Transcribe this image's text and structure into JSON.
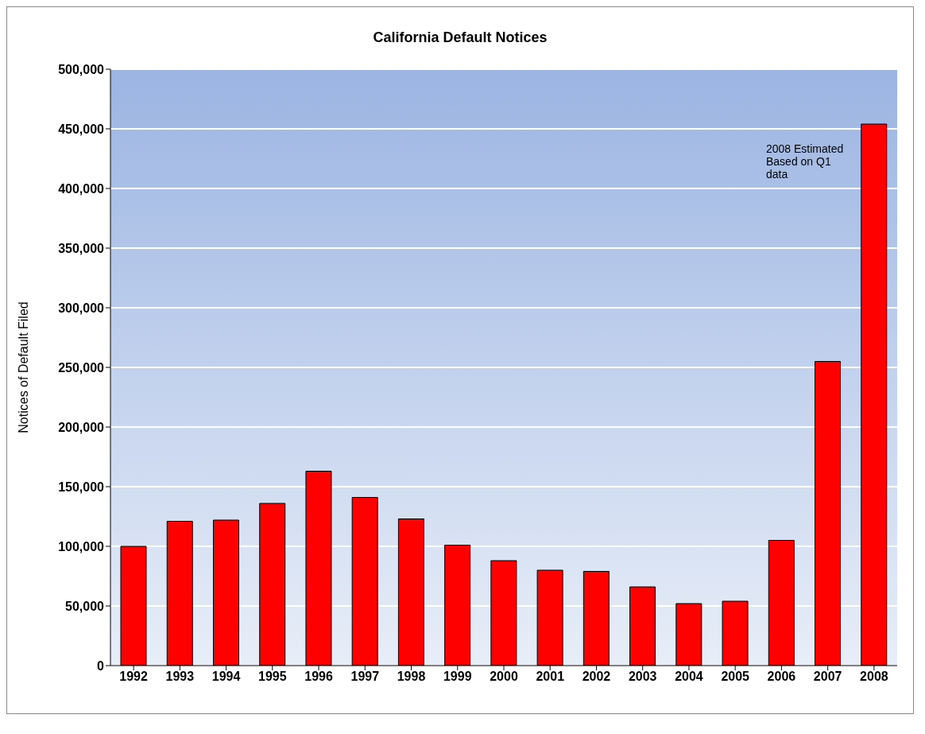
{
  "chart_data": {
    "type": "bar",
    "title": "California Default Notices",
    "ylabel": "Notices of Default Filed",
    "categories": [
      "1992",
      "1993",
      "1994",
      "1995",
      "1996",
      "1997",
      "1998",
      "1999",
      "2000",
      "2001",
      "2002",
      "2003",
      "2004",
      "2005",
      "2006",
      "2007",
      "2008"
    ],
    "values": [
      100000,
      121000,
      122000,
      136000,
      163000,
      141000,
      123000,
      101000,
      88000,
      80000,
      79000,
      66000,
      52000,
      54000,
      105000,
      255000,
      454000
    ],
    "color": "#ff0000",
    "ylim": [
      0,
      500000
    ],
    "yticks": [
      {
        "value": 0,
        "label": "0"
      },
      {
        "value": 50000,
        "label": "50,000"
      },
      {
        "value": 100000,
        "label": "100,000"
      },
      {
        "value": 150000,
        "label": "150,000"
      },
      {
        "value": 200000,
        "label": "200,000"
      },
      {
        "value": 250000,
        "label": "250,000"
      },
      {
        "value": 300000,
        "label": "300,000"
      },
      {
        "value": 350000,
        "label": "350,000"
      },
      {
        "value": 400000,
        "label": "400,000"
      },
      {
        "value": 450000,
        "label": "450,000"
      },
      {
        "value": 500000,
        "label": "500,000"
      }
    ],
    "grid": "y",
    "annotations": [
      "2008 Estimated Based on Q1 data"
    ]
  }
}
